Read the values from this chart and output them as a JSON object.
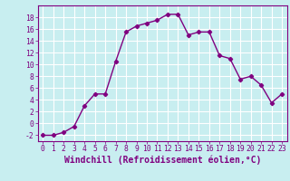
{
  "x": [
    0,
    1,
    2,
    3,
    4,
    5,
    6,
    7,
    8,
    9,
    10,
    11,
    12,
    13,
    14,
    15,
    16,
    17,
    18,
    19,
    20,
    21,
    22,
    23
  ],
  "y": [
    -2,
    -2,
    -1.5,
    -0.5,
    3,
    5,
    5,
    10.5,
    15.5,
    16.5,
    17,
    17.5,
    18.5,
    18.5,
    15,
    15.5,
    15.5,
    11.5,
    11,
    7.5,
    8,
    6.5,
    3.5,
    5
  ],
  "line_color": "#800080",
  "bg_color": "#c8eef0",
  "grid_color": "#ffffff",
  "xlabel": "Windchill (Refroidissement éolien,°C)",
  "xlim": [
    -0.5,
    23.5
  ],
  "ylim": [
    -3,
    20
  ],
  "yticks": [
    -2,
    0,
    2,
    4,
    6,
    8,
    10,
    12,
    14,
    16,
    18
  ],
  "xticks": [
    0,
    1,
    2,
    3,
    4,
    5,
    6,
    7,
    8,
    9,
    10,
    11,
    12,
    13,
    14,
    15,
    16,
    17,
    18,
    19,
    20,
    21,
    22,
    23
  ],
  "label_color": "#800080",
  "tick_fontsize": 5.8,
  "xlabel_fontsize": 7.0
}
